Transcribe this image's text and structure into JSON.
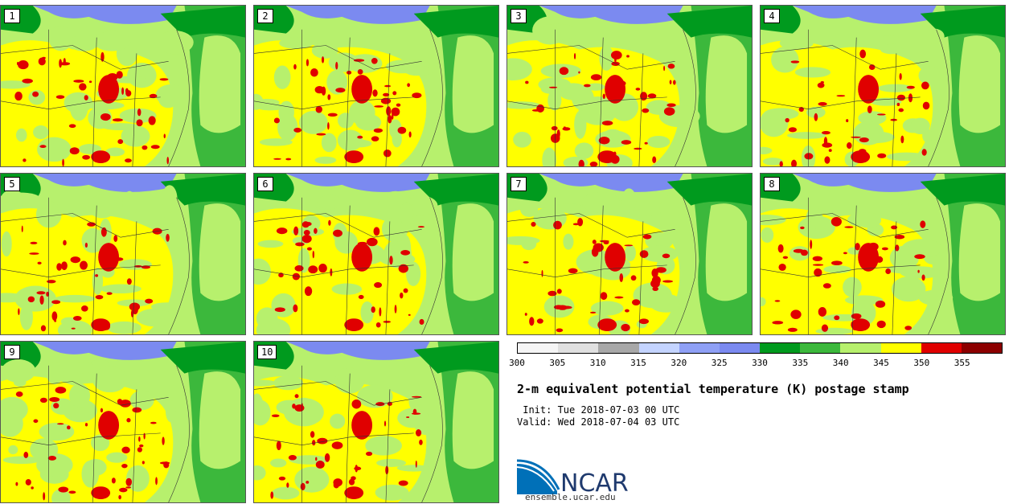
{
  "panels": [
    {
      "label": "1"
    },
    {
      "label": "2"
    },
    {
      "label": "3"
    },
    {
      "label": "4"
    },
    {
      "label": "5"
    },
    {
      "label": "6"
    },
    {
      "label": "7"
    },
    {
      "label": "8"
    },
    {
      "label": "9"
    },
    {
      "label": "10"
    }
  ],
  "colorbar": {
    "ticks": [
      "300",
      "305",
      "310",
      "315",
      "320",
      "325",
      "330",
      "335",
      "340",
      "345",
      "350",
      "355"
    ],
    "colors": [
      "#f5f5f5",
      "#e0e0e0",
      "#a8a8a8",
      "#c4d4ff",
      "#8fa0f5",
      "#7b8af0",
      "#009a1e",
      "#3cb83c",
      "#b7f06d",
      "#ffff00",
      "#e00000",
      "#8c0000"
    ]
  },
  "title": "2-m equivalent potential temperature (K) postage stamp",
  "init": " Init: Tue 2018-07-03 00 UTC",
  "valid": "Valid: Wed 2018-07-04 03 UTC",
  "logo": {
    "text": "NCAR",
    "accent": "#0070b8"
  },
  "site": "ensemble.ucar.edu"
}
